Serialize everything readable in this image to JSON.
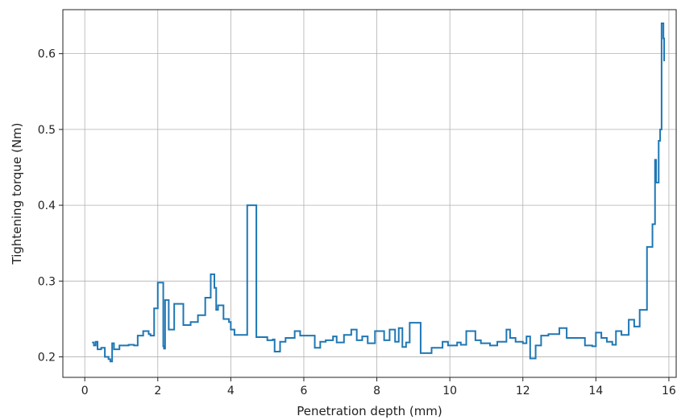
{
  "chart_data": {
    "type": "line",
    "xlabel": "Penetration depth (mm)",
    "ylabel": "Tightening torque (Nm)",
    "xlim": [
      -0.6,
      16.2
    ],
    "ylim": [
      0.173,
      0.658
    ],
    "grid": true,
    "line_style": "steps-post",
    "x_ticks": [
      {
        "value": 0,
        "label": "0"
      },
      {
        "value": 2,
        "label": "2"
      },
      {
        "value": 4,
        "label": "4"
      },
      {
        "value": 6,
        "label": "6"
      },
      {
        "value": 8,
        "label": "8"
      },
      {
        "value": 10,
        "label": "10"
      },
      {
        "value": 12,
        "label": "12"
      },
      {
        "value": 14,
        "label": "14"
      },
      {
        "value": 16,
        "label": "16"
      }
    ],
    "y_ticks": [
      {
        "value": 0.2,
        "label": "0.2"
      },
      {
        "value": 0.3,
        "label": "0.3"
      },
      {
        "value": 0.4,
        "label": "0.4"
      },
      {
        "value": 0.5,
        "label": "0.5"
      },
      {
        "value": 0.6,
        "label": "0.6"
      }
    ],
    "series": [
      {
        "color": "#1f77b4",
        "x": [
          0.2,
          0.25,
          0.3,
          0.35,
          0.45,
          0.55,
          0.65,
          0.7,
          0.75,
          0.8,
          0.95,
          1.2,
          1.35,
          1.45,
          1.6,
          1.75,
          1.8,
          1.9,
          2.0,
          2.15,
          2.17,
          2.2,
          2.3,
          2.45,
          2.7,
          2.9,
          3.1,
          3.3,
          3.45,
          3.55,
          3.6,
          3.65,
          3.8,
          3.95,
          4.0,
          4.1,
          4.45,
          4.7,
          5.0,
          5.15,
          5.2,
          5.35,
          5.5,
          5.75,
          5.9,
          6.2,
          6.3,
          6.45,
          6.6,
          6.8,
          6.9,
          7.1,
          7.3,
          7.45,
          7.6,
          7.75,
          7.95,
          8.2,
          8.35,
          8.5,
          8.6,
          8.7,
          8.8,
          8.9,
          9.2,
          9.5,
          9.8,
          9.95,
          10.2,
          10.3,
          10.45,
          10.7,
          10.85,
          11.1,
          11.3,
          11.55,
          11.65,
          11.8,
          12.0,
          12.1,
          12.2,
          12.35,
          12.5,
          12.7,
          13.0,
          13.2,
          13.7,
          13.9,
          14.0,
          14.15,
          14.3,
          14.45,
          14.55,
          14.7,
          14.9,
          15.05,
          15.2,
          15.4,
          15.55,
          15.62,
          15.65,
          15.72,
          15.76,
          15.8,
          15.82,
          15.85,
          15.87
        ],
        "y": [
          0.219,
          0.215,
          0.22,
          0.21,
          0.212,
          0.2,
          0.197,
          0.194,
          0.218,
          0.21,
          0.215,
          0.216,
          0.215,
          0.228,
          0.234,
          0.23,
          0.228,
          0.264,
          0.298,
          0.214,
          0.211,
          0.275,
          0.236,
          0.27,
          0.242,
          0.246,
          0.255,
          0.278,
          0.309,
          0.291,
          0.262,
          0.268,
          0.25,
          0.246,
          0.236,
          0.229,
          0.4,
          0.226,
          0.222,
          0.223,
          0.207,
          0.22,
          0.225,
          0.234,
          0.228,
          0.228,
          0.212,
          0.22,
          0.222,
          0.227,
          0.219,
          0.229,
          0.236,
          0.222,
          0.227,
          0.218,
          0.234,
          0.222,
          0.236,
          0.22,
          0.238,
          0.213,
          0.219,
          0.245,
          0.205,
          0.212,
          0.22,
          0.215,
          0.219,
          0.216,
          0.234,
          0.222,
          0.218,
          0.215,
          0.22,
          0.236,
          0.225,
          0.22,
          0.218,
          0.227,
          0.198,
          0.215,
          0.228,
          0.23,
          0.238,
          0.225,
          0.215,
          0.214,
          0.232,
          0.225,
          0.22,
          0.216,
          0.234,
          0.229,
          0.249,
          0.24,
          0.262,
          0.345,
          0.375,
          0.46,
          0.43,
          0.485,
          0.5,
          0.64,
          0.64,
          0.62,
          0.59
        ]
      }
    ]
  }
}
